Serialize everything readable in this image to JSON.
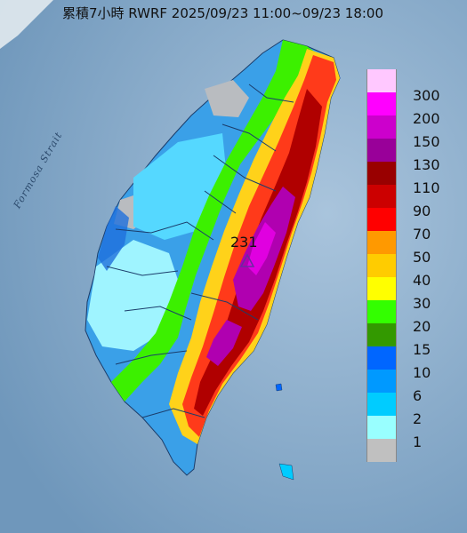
{
  "title": "累積7小時 RWRF 2025/09/23 11:00~09/23 18:00",
  "sea_label": "Formosa Strait",
  "max_station": {
    "value": "231",
    "marker": "triangle-icon"
  },
  "legend": [
    {
      "label": "300",
      "color": "#ffc8ff"
    },
    {
      "label": "200",
      "color": "#ff00ff"
    },
    {
      "label": "150",
      "color": "#cc00cc"
    },
    {
      "label": "130",
      "color": "#990099"
    },
    {
      "label": "110",
      "color": "#990000"
    },
    {
      "label": "90",
      "color": "#cc0000"
    },
    {
      "label": "70",
      "color": "#ff0000"
    },
    {
      "label": "50",
      "color": "#ff9900"
    },
    {
      "label": "40",
      "color": "#ffcc00"
    },
    {
      "label": "30",
      "color": "#ffff00"
    },
    {
      "label": "20",
      "color": "#33ff00"
    },
    {
      "label": "15",
      "color": "#339900"
    },
    {
      "label": "10",
      "color": "#0066ff"
    },
    {
      "label": "6",
      "color": "#0099ff"
    },
    {
      "label": "2",
      "color": "#00ccff"
    },
    {
      "label": "1",
      "color": "#99ffff"
    },
    {
      "label": "",
      "color": "#c0c0c0"
    }
  ]
}
